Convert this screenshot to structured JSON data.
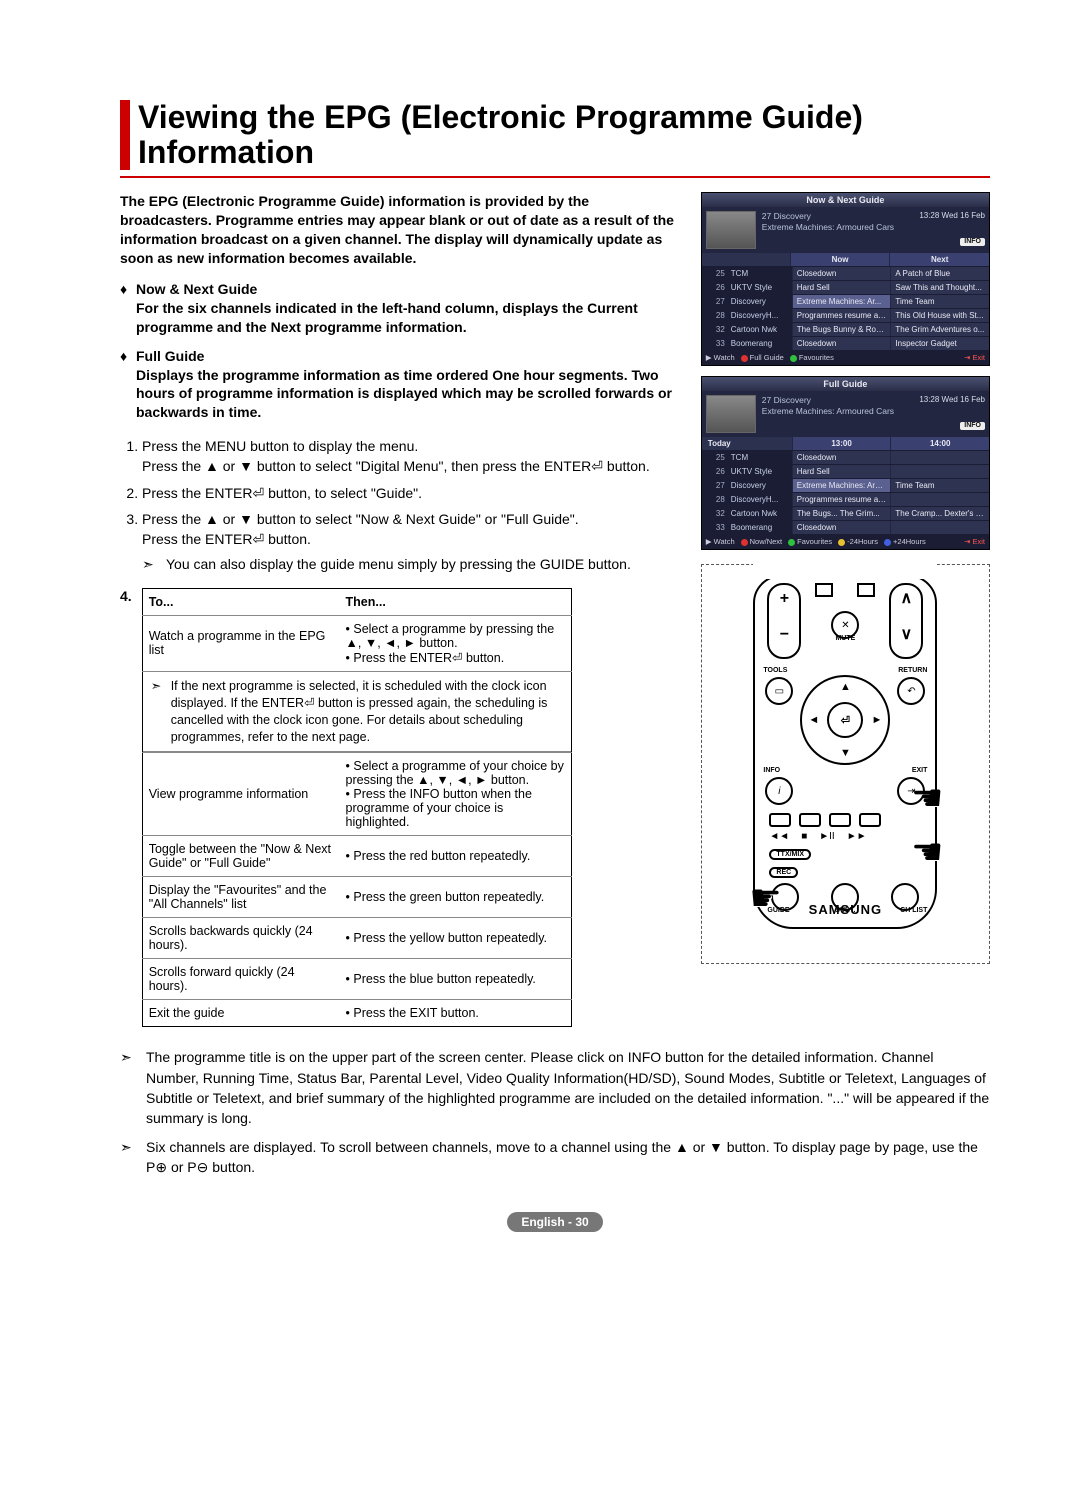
{
  "page": {
    "title": "Viewing the EPG (Electronic Programme Guide) Information",
    "footer": "English - 30"
  },
  "intro": "The EPG (Electronic Programme Guide) information is provided by the broadcasters. Programme entries may appear blank or out of date as a result of the information broadcast on a given channel. The display will dynamically update as soon as new information becomes available.",
  "bullet1": {
    "title": "Now & Next Guide",
    "body": "For the six channels indicated in the left-hand column, displays the Current programme and the Next programme information."
  },
  "bullet2": {
    "title": "Full Guide",
    "body": "Displays the programme information as time ordered One hour segments. Two hours of programme information is displayed which may be scrolled forwards or backwards in time."
  },
  "steps": {
    "1a": "Press the MENU button to display the menu.",
    "1b": "Press the ▲ or ▼ button to select \"Digital Menu\", then press the ENTER⏎ button.",
    "2": "Press the ENTER⏎ button, to select \"Guide\".",
    "3a": "Press the ▲ or ▼ button to select \"Now & Next Guide\" or \"Full Guide\".",
    "3b": "Press the ENTER⏎ button.",
    "3note": "You can also display the guide menu simply by pressing the GUIDE button."
  },
  "table": {
    "head_to": "To...",
    "head_then": "Then...",
    "r1_to": "Watch a programme in the EPG list",
    "r1_then": "• Select a programme by pressing the ▲, ▼, ◄, ► button.\n• Press the ENTER⏎ button.",
    "merged_note": "If the next programme is selected, it is scheduled with the clock icon displayed. If the ENTER⏎ button is pressed again, the scheduling is cancelled with the clock icon gone. For details about scheduling programmes, refer to the next page.",
    "r2_to": "View programme information",
    "r2_then": "• Select a programme of your choice by pressing the ▲, ▼, ◄, ► button.\n• Press the INFO button when the programme of your choice is highlighted.",
    "r3_to": "Toggle between the \"Now & Next Guide\" or \"Full Guide\"",
    "r3_then": "• Press the red button repeatedly.",
    "r4_to": "Display the \"Favourites\" and the \"All Channels\" list",
    "r4_then": "• Press the green button repeatedly.",
    "r5_to": "Scrolls backwards quickly (24 hours).",
    "r5_then": "• Press the yellow button repeatedly.",
    "r6_to": "Scrolls forward quickly (24 hours).",
    "r6_then": "• Press the blue button repeatedly.",
    "r7_to": "Exit the guide",
    "r7_then": "• Press the EXIT button."
  },
  "final_notes": {
    "n1": "The programme title is on the upper part of the screen center. Please click on INFO button for the detailed information. Channel Number, Running Time, Status Bar, Parental Level, Video Quality Information(HD/SD), Sound Modes, Subtitle or Teletext, Languages of Subtitle or Teletext, and brief summary of the highlighted programme are included on the detailed information. \"...\" will be appeared if the summary is long.",
    "n2": "Six channels are displayed. To scroll between channels, move to a channel using the ▲ or ▼ button. To display page by page, use the P⊕ or P⊖ button."
  },
  "epg1": {
    "title_band": "Now & Next Guide",
    "channel_line1": "27 Discovery",
    "channel_line2": "Extreme Machines: Armoured Cars",
    "datetime": "13:28  Wed 16 Feb",
    "info_label": "INFO",
    "head_now": "Now",
    "head_next": "Next",
    "rows": [
      {
        "num": "25",
        "name": "TCM",
        "now": "Closedown",
        "next": "A Patch of Blue"
      },
      {
        "num": "26",
        "name": "UKTV Style",
        "now": "Hard Sell",
        "next": "Saw This and Thought..."
      },
      {
        "num": "27",
        "name": "Discovery",
        "now": "Extreme Machines: Ar...",
        "next": "Time Team",
        "hl": true
      },
      {
        "num": "28",
        "name": "DiscoveryH...",
        "now": "Programmes resume at...",
        "next": "This Old House with St..."
      },
      {
        "num": "32",
        "name": "Cartoon Nwk",
        "now": "The Bugs Bunny & Roa...",
        "next": "The Grim Adventures o..."
      },
      {
        "num": "33",
        "name": "Boomerang",
        "now": "Closedown",
        "next": "Inspector Gadget"
      }
    ],
    "foot_watch": "Watch",
    "foot_full": "Full Guide",
    "foot_fav": "Favourites",
    "foot_exit": "Exit"
  },
  "epg2": {
    "title_band": "Full Guide",
    "channel_line1": "27 Discovery",
    "channel_line2": "Extreme Machines: Armoured Cars",
    "datetime": "13:28  Wed 16 Feb",
    "info_label": "INFO",
    "today": "Today",
    "slot1": "13:00",
    "slot2": "14:00",
    "rows": [
      {
        "num": "25",
        "name": "TCM",
        "c1": "Closedown",
        "c2": ""
      },
      {
        "num": "26",
        "name": "UKTV Style",
        "c1": "Hard Sell",
        "c2": ""
      },
      {
        "num": "27",
        "name": "Discovery",
        "c1": "Extreme Machines: Arm...",
        "c2": "Time Team",
        "hl": true
      },
      {
        "num": "28",
        "name": "DiscoveryH...",
        "c1": "Programmes resume at 06:00",
        "c2": ""
      },
      {
        "num": "32",
        "name": "Cartoon Nwk",
        "c1": "The Bugs...   The Grim...",
        "c2": "The Cramp...   Dexter's L..."
      },
      {
        "num": "33",
        "name": "Boomerang",
        "c1": "Closedown",
        "c2": ""
      }
    ],
    "foot_watch": "Watch",
    "foot_nn": "Now/Next",
    "foot_fav": "Favourites",
    "foot_m24": "-24Hours",
    "foot_p24": "+24Hours",
    "foot_exit": "Exit"
  },
  "remote": {
    "tools": "TOOLS",
    "return": "RETURN",
    "info": "INFO",
    "exit": "EXIT",
    "ttx": "TTX/MIX",
    "guide": "GUIDE",
    "subt": "SUBT.",
    "chl": "CH LIST",
    "rec": "REC",
    "enter": "⏎",
    "brand": "SAMSUNG",
    "mute": "MUTE"
  }
}
